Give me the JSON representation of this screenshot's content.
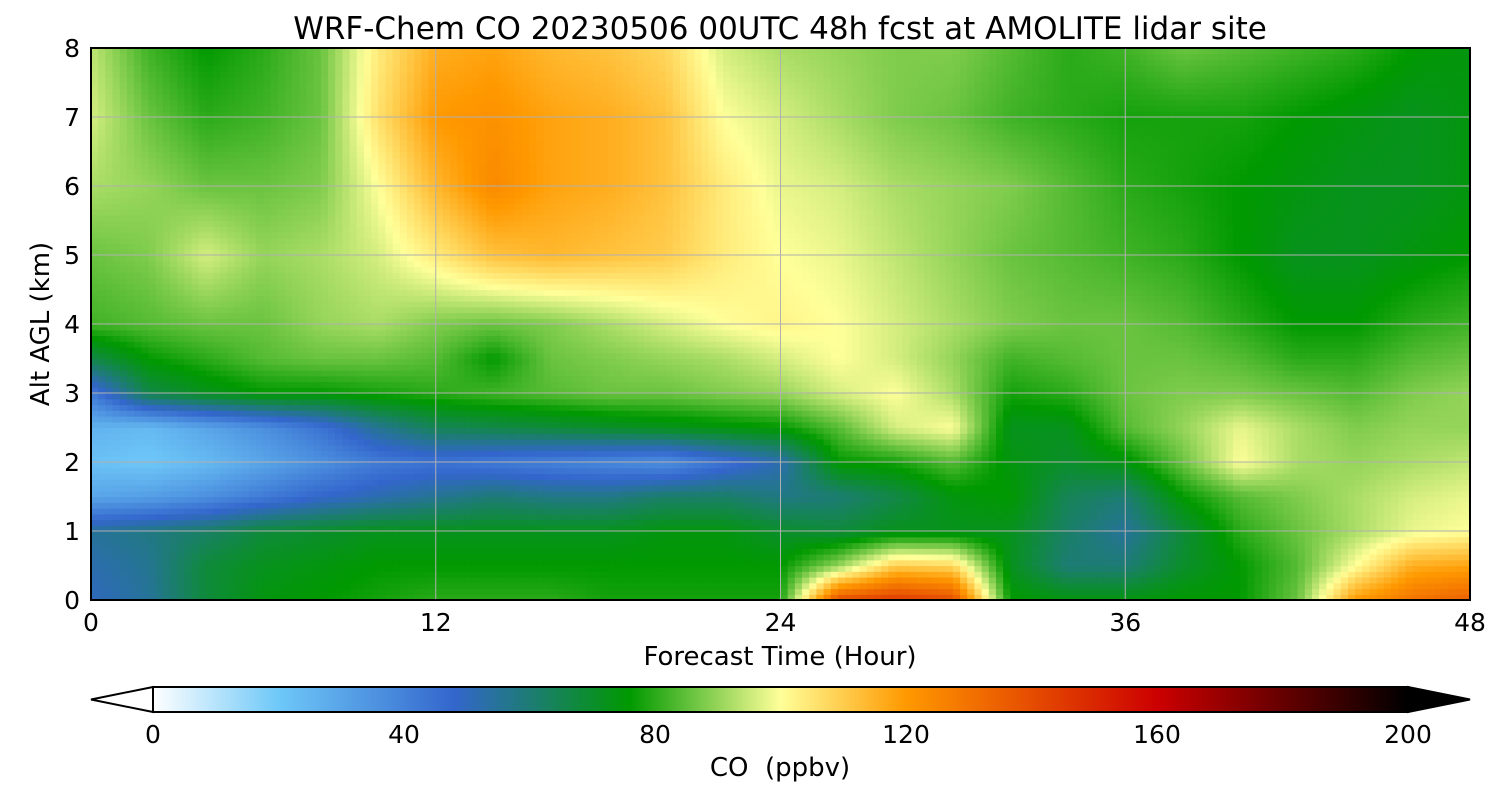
{
  "chart_data": {
    "type": "heatmap",
    "title": "WRF-Chem CO  20230506 00UTC 48h fcst at AMOLITE lidar site",
    "xlabel": "Forecast Time (Hour)",
    "ylabel": "Alt AGL (km)",
    "xlim": [
      0,
      48
    ],
    "ylim": [
      0,
      8
    ],
    "x_ticks": [
      "0",
      "12",
      "24",
      "36",
      "48"
    ],
    "y_ticks": [
      "0",
      "1",
      "2",
      "3",
      "4",
      "5",
      "6",
      "7",
      "8"
    ],
    "grid": true,
    "colorbar": {
      "label": "CO  (ppbv)",
      "range": [
        0,
        200
      ],
      "extend": "both",
      "ticks": [
        "0",
        "40",
        "80",
        "120",
        "160",
        "200"
      ],
      "color_stops": [
        {
          "value": 0,
          "color": "#ffffff"
        },
        {
          "value": 20,
          "color": "#6ec8f8"
        },
        {
          "value": 48,
          "color": "#3366cc"
        },
        {
          "value": 76,
          "color": "#009900"
        },
        {
          "value": 100,
          "color": "#ffff99"
        },
        {
          "value": 120,
          "color": "#ff9900"
        },
        {
          "value": 160,
          "color": "#cc0000"
        },
        {
          "value": 200,
          "color": "#000000"
        }
      ]
    },
    "x_hours": [
      0,
      2,
      4,
      6,
      8,
      10,
      12,
      14,
      16,
      18,
      20,
      22,
      24,
      26,
      28,
      30,
      32,
      34,
      36,
      38,
      40,
      42,
      44,
      46,
      48
    ],
    "z_km": [
      0,
      0.5,
      1,
      1.5,
      2,
      2.5,
      3,
      3.5,
      4,
      5,
      6,
      7,
      8
    ],
    "co_ppbv": [
      [
        50,
        55,
        68,
        74,
        76,
        78,
        80,
        80,
        80,
        78,
        78,
        78,
        78,
        140,
        145,
        140,
        76,
        74,
        74,
        76,
        76,
        86,
        120,
        130,
        135
      ],
      [
        52,
        56,
        68,
        72,
        74,
        76,
        76,
        76,
        76,
        76,
        76,
        76,
        76,
        90,
        110,
        108,
        72,
        60,
        60,
        70,
        76,
        84,
        100,
        116,
        118
      ],
      [
        55,
        58,
        62,
        68,
        70,
        72,
        72,
        72,
        72,
        72,
        74,
        74,
        70,
        68,
        72,
        72,
        72,
        62,
        55,
        68,
        80,
        86,
        92,
        98,
        100
      ],
      [
        30,
        32,
        36,
        42,
        48,
        52,
        56,
        60,
        58,
        58,
        62,
        62,
        58,
        60,
        66,
        74,
        76,
        64,
        60,
        76,
        84,
        88,
        92,
        96,
        98
      ],
      [
        22,
        20,
        24,
        30,
        36,
        42,
        44,
        42,
        40,
        38,
        36,
        44,
        52,
        76,
        78,
        84,
        74,
        70,
        74,
        86,
        100,
        92,
        90,
        92,
        94
      ],
      [
        26,
        24,
        30,
        36,
        44,
        56,
        64,
        66,
        68,
        70,
        72,
        74,
        76,
        84,
        96,
        100,
        72,
        72,
        84,
        90,
        98,
        92,
        88,
        90,
        90
      ],
      [
        42,
        66,
        72,
        76,
        76,
        78,
        80,
        82,
        84,
        86,
        86,
        88,
        90,
        96,
        100,
        92,
        78,
        80,
        86,
        88,
        88,
        86,
        84,
        88,
        90
      ],
      [
        66,
        76,
        80,
        84,
        86,
        86,
        84,
        76,
        86,
        88,
        90,
        92,
        96,
        100,
        96,
        90,
        82,
        84,
        86,
        86,
        84,
        80,
        80,
        84,
        86
      ],
      [
        82,
        84,
        86,
        86,
        90,
        92,
        88,
        86,
        88,
        92,
        96,
        100,
        102,
        100,
        96,
        92,
        88,
        86,
        86,
        84,
        80,
        76,
        76,
        80,
        82
      ],
      [
        86,
        88,
        96,
        90,
        92,
        96,
        104,
        112,
        114,
        112,
        110,
        104,
        100,
        98,
        94,
        90,
        86,
        84,
        82,
        80,
        76,
        72,
        72,
        74,
        76
      ],
      [
        92,
        90,
        86,
        86,
        88,
        100,
        114,
        124,
        118,
        116,
        112,
        104,
        98,
        96,
        92,
        90,
        88,
        84,
        80,
        78,
        76,
        74,
        72,
        72,
        74
      ],
      [
        96,
        86,
        80,
        82,
        86,
        106,
        120,
        122,
        118,
        116,
        112,
        100,
        96,
        92,
        88,
        86,
        82,
        80,
        78,
        78,
        78,
        76,
        74,
        72,
        74
      ],
      [
        94,
        82,
        76,
        80,
        86,
        104,
        116,
        118,
        114,
        112,
        108,
        96,
        92,
        90,
        88,
        88,
        84,
        80,
        82,
        86,
        84,
        82,
        80,
        76,
        74
      ]
    ]
  }
}
